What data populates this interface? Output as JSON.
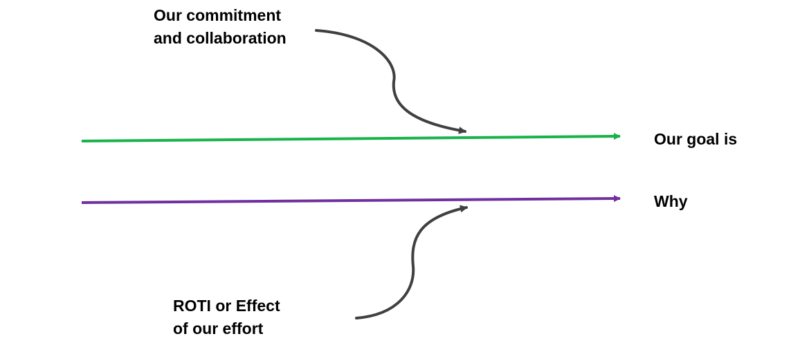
{
  "labels": {
    "commitment": [
      "Our commitment",
      "and collaboration"
    ],
    "roti": [
      "ROTI or Effect",
      "of our effort"
    ],
    "goal": "Our goal is",
    "why": "Why"
  },
  "colors": {
    "goal_arrow": "#19b24b",
    "why_arrow": "#7030a0",
    "connector_arrow": "#404040",
    "text": "#000000"
  }
}
